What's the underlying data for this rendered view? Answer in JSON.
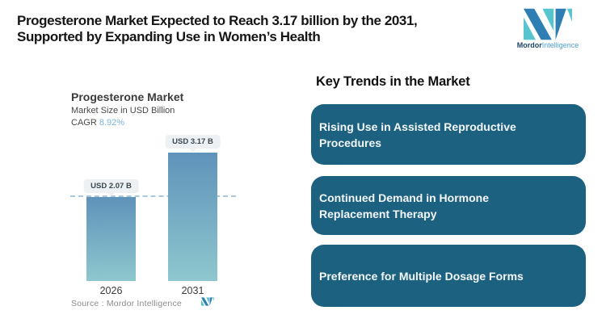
{
  "header": {
    "title": "Progesterone Market Expected to Reach 3.17 billion by the 2031,\nSupported by Expanding Use in Women’s Health"
  },
  "brand": {
    "logo_icon": "mordor-intelligence-logo",
    "name_bold": "Mordor",
    "name_light": "Intelligence",
    "color_dark": "#2e7eb4",
    "color_teal": "#56c5ce"
  },
  "chart": {
    "title": "Progesterone Market",
    "subtitle": "Market Size in USD Billion",
    "cagr_label": "CAGR",
    "cagr_value": "8.92%",
    "cagr_value_color": "#7fb5da",
    "source_label": "Source :",
    "source_value": "Mordor Intelligence"
  },
  "chart_data": {
    "type": "bar",
    "title": "Progesterone Market",
    "ylabel": "Market Size in USD Billion",
    "cagr": "8.92%",
    "categories": [
      "2026",
      "2031"
    ],
    "values": [
      2.07,
      3.17
    ],
    "value_labels": [
      "USD 2.07 B",
      "USD 3.17 B"
    ],
    "ylim": [
      0,
      3.4
    ],
    "grid": false,
    "reference_line": 2.07,
    "reference_line_style": "dashed",
    "reference_line_color": "#a9c8dc",
    "bar_gradient_top": "#5f93ba",
    "bar_gradient_bottom": "#8ec7ce",
    "value_badge_bg": "#edf1f3"
  },
  "trends": {
    "heading": "Key Trends in the Market",
    "card_bg": "#1d6180",
    "cards": [
      {
        "label": "Rising Use in Assisted Reproductive\nProcedures"
      },
      {
        "label": "Continued Demand in Hormone\nReplacement Therapy"
      },
      {
        "label": "Preference for Multiple Dosage Forms"
      }
    ]
  }
}
